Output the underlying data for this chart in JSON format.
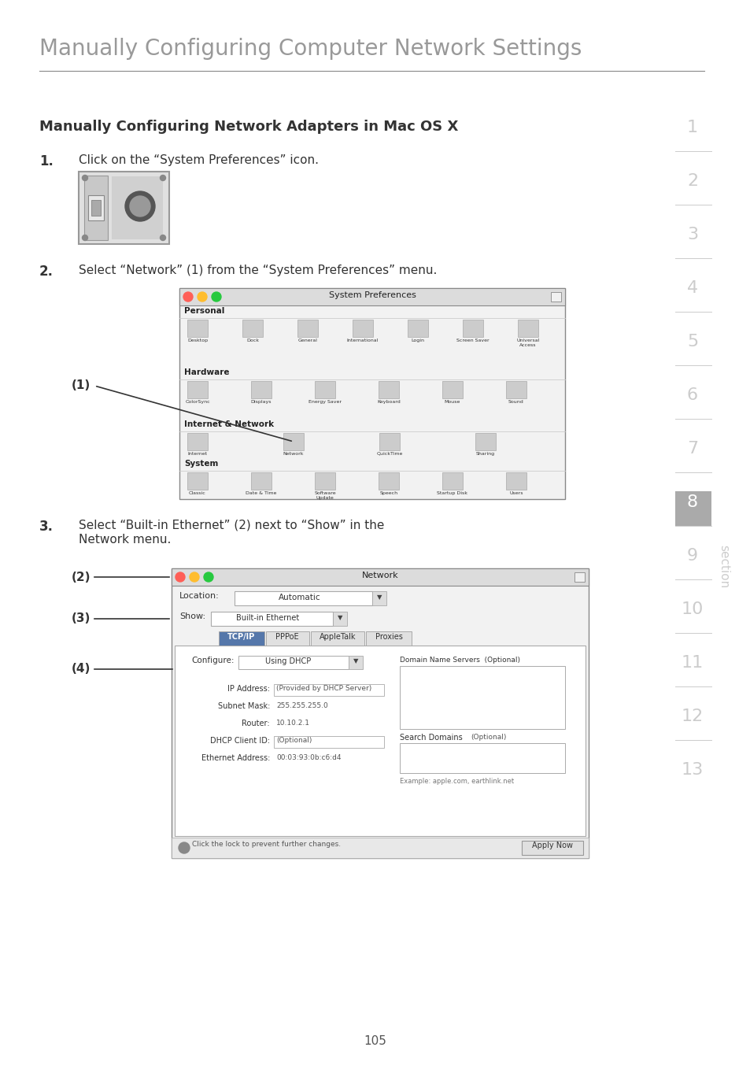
{
  "page_bg": "#ffffff",
  "header_title": "Manually Configuring Computer Network Settings",
  "header_color": "#999999",
  "header_line_color": "#555555",
  "section_title": "Manually Configuring Network Adapters in Mac OS X",
  "section_title_color": "#333333",
  "body_text_color": "#333333",
  "step1_num": "1.",
  "step1_text": "Click on the “System Preferences” icon.",
  "step2_num": "2.",
  "step2_text": "Select “Network” (1) from the “System Preferences” menu.",
  "step3_num": "3.",
  "step3_text_line1": "Select “Built-in Ethernet” (2) next to “Show” in the",
  "step3_text_line2": "Network menu.",
  "sidebar_numbers": [
    "1",
    "2",
    "3",
    "4",
    "5",
    "6",
    "7",
    "8",
    "9",
    "10",
    "11",
    "12",
    "13"
  ],
  "sidebar_active": "8",
  "sidebar_active_bg": "#aaaaaa",
  "sidebar_text_color": "#cccccc",
  "sidebar_word": "section",
  "page_number": "105",
  "sp_title": "System Preferences",
  "sp_personal": "Personal",
  "sp_hardware": "Hardware",
  "sp_inet": "Internet & Network",
  "sp_system": "System",
  "sp_personal_icons": [
    "Desktop",
    "Dock",
    "General",
    "International",
    "Login",
    "Screen Saver",
    "Universal\nAccess"
  ],
  "sp_hardware_icons": [
    "ColorSync",
    "Displays",
    "Energy Saver",
    "Keyboard",
    "Mouse",
    "Sound"
  ],
  "sp_inet_icons": [
    "Internet",
    "Network",
    "QuickTime",
    "Sharing"
  ],
  "sp_system_icons": [
    "Classic",
    "Date & Time",
    "Software\nUpdate",
    "Speech",
    "Startup Disk",
    "Users"
  ],
  "nd_title": "Network",
  "nd_location_label": "Location:",
  "nd_location_val": "Automatic",
  "nd_show_label": "Show:",
  "nd_show_val": "Built-in Ethernet",
  "nd_tabs": [
    "TCP/IP",
    "PPPoE",
    "AppleTalk",
    "Proxies"
  ],
  "nd_active_tab": 0,
  "nd_configure_label": "Configure:",
  "nd_configure_val": "Using DHCP",
  "nd_dns_label": "Domain Name Servers  (Optional)",
  "nd_ip_label": "IP Address:",
  "nd_ip_val": "(Provided by DHCP Server)",
  "nd_subnet_label": "Subnet Mask:",
  "nd_subnet_val": "255.255.255.0",
  "nd_router_label": "Router:",
  "nd_router_val": "10.10.2.1",
  "nd_dhcp_label": "DHCP Client ID:",
  "nd_dhcp_val": "(Optional)",
  "nd_eth_label": "Ethernet Address:",
  "nd_eth_val": "00:03:93:0b:c6:d4",
  "nd_search_label": "Search Domains",
  "nd_search_opt": "(Optional)",
  "nd_example": "Example: apple.com, earthlink.net",
  "nd_lock_text": "Click the lock to prevent further changes.",
  "nd_apply": "Apply Now",
  "label1": "(1)",
  "label2": "(2)",
  "label3": "(3)",
  "label4": "(4)"
}
